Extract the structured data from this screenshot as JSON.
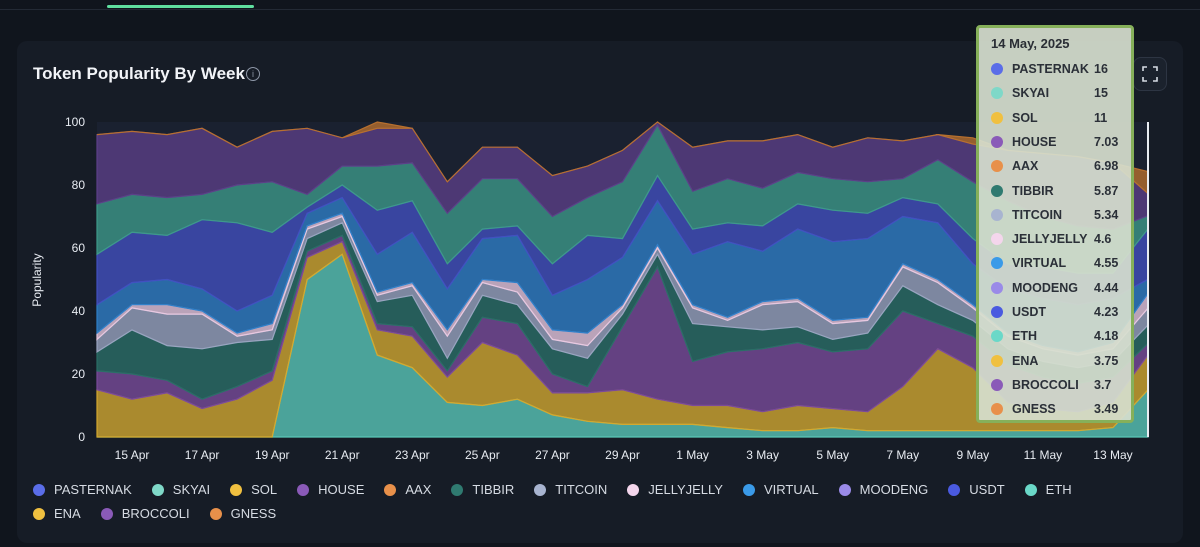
{
  "card": {
    "title": "Token Popularity By Week",
    "info_glyph": "i"
  },
  "chart_data": {
    "type": "area",
    "stacked": true,
    "title": "Token Popularity By Week",
    "ylabel": "Popularity",
    "xlabel": "",
    "ylim": [
      0,
      100
    ],
    "yticks": [
      0,
      20,
      40,
      60,
      80,
      100
    ],
    "grid": false,
    "legend_position": "bottom",
    "x": [
      "14 Apr",
      "15 Apr",
      "16 Apr",
      "17 Apr",
      "18 Apr",
      "19 Apr",
      "20 Apr",
      "21 Apr",
      "22 Apr",
      "23 Apr",
      "24 Apr",
      "25 Apr",
      "26 Apr",
      "27 Apr",
      "28 Apr",
      "29 Apr",
      "30 Apr",
      "1 May",
      "2 May",
      "3 May",
      "4 May",
      "5 May",
      "6 May",
      "7 May",
      "8 May",
      "9 May",
      "10 May",
      "11 May",
      "12 May",
      "13 May",
      "14 May"
    ],
    "xticks": [
      "15 Apr",
      "17 Apr",
      "19 Apr",
      "21 Apr",
      "23 Apr",
      "25 Apr",
      "27 Apr",
      "29 Apr",
      "1 May",
      "3 May",
      "5 May",
      "7 May",
      "9 May",
      "11 May",
      "13 May"
    ],
    "series": [
      {
        "name": "SKYAI",
        "color": "#5ac8b8",
        "values": [
          0,
          0,
          0,
          0,
          0,
          0,
          50,
          58,
          26,
          22,
          11,
          10,
          12,
          7,
          5,
          4,
          4,
          4,
          3,
          2,
          2,
          3,
          2,
          2,
          2,
          2,
          2,
          2,
          2,
          3,
          15
        ]
      },
      {
        "name": "SOL",
        "color": "#d4a82e",
        "values": [
          15,
          12,
          14,
          9,
          12,
          18,
          7,
          4,
          8,
          10,
          8,
          20,
          14,
          7,
          9,
          11,
          8,
          6,
          7,
          6,
          8,
          6,
          6,
          14,
          26,
          20,
          9,
          7,
          6,
          8,
          11
        ]
      },
      {
        "name": "BROCCOLI",
        "color": "#7a4a9a",
        "values": [
          6,
          8,
          4,
          3,
          4,
          3,
          2,
          2,
          2,
          3,
          2,
          8,
          10,
          6,
          2,
          20,
          42,
          14,
          17,
          20,
          20,
          18,
          20,
          24,
          8,
          10,
          12,
          10,
          9,
          8,
          3.7
        ]
      },
      {
        "name": "TIBBIR",
        "color": "#2a6e66",
        "values": [
          6,
          14,
          11,
          16,
          14,
          10,
          4,
          4,
          7,
          10,
          4,
          7,
          6,
          8,
          9,
          4,
          4,
          12,
          8,
          6,
          5,
          4,
          5,
          8,
          6,
          5,
          5,
          5,
          5,
          5,
          5.87
        ]
      },
      {
        "name": "TITCOIN",
        "color": "#9aa4c0",
        "values": [
          4,
          7,
          10,
          11,
          2,
          3,
          3,
          2,
          2,
          3,
          7,
          4,
          4,
          3,
          4,
          2,
          2,
          5,
          2,
          8,
          8,
          5,
          4,
          6,
          7,
          4,
          4,
          4,
          4,
          4,
          5.34
        ]
      },
      {
        "name": "JELLYJELLY",
        "color": "#e8c8e0",
        "values": [
          2,
          1,
          3,
          1,
          1,
          2,
          1,
          1,
          1,
          1,
          2,
          1,
          3,
          3,
          4,
          1,
          1,
          1,
          1,
          1,
          1,
          1,
          1,
          1,
          1,
          1,
          1,
          1,
          1,
          2,
          4.6
        ]
      },
      {
        "name": "VIRTUAL",
        "color": "#2f7fc8",
        "values": [
          9,
          7,
          8,
          7,
          7,
          9,
          4,
          5,
          12,
          16,
          13,
          13,
          15,
          11,
          17,
          15,
          14,
          16,
          24,
          16,
          22,
          25,
          25,
          15,
          18,
          13,
          14,
          15,
          15,
          14,
          4.55
        ]
      },
      {
        "name": "PASTERNAK",
        "color": "#4250c0",
        "values": [
          16,
          16,
          14,
          22,
          28,
          20,
          2,
          4,
          14,
          10,
          8,
          3,
          3,
          10,
          14,
          6,
          8,
          8,
          6,
          8,
          8,
          10,
          8,
          6,
          6,
          8,
          8,
          10,
          10,
          8,
          16
        ]
      },
      {
        "name": "ETH",
        "color": "#3e9a8a",
        "values": [
          16,
          12,
          12,
          8,
          12,
          16,
          4,
          6,
          14,
          12,
          16,
          16,
          15,
          15,
          12,
          18,
          16,
          12,
          14,
          12,
          10,
          10,
          10,
          6,
          14,
          18,
          20,
          16,
          15,
          14,
          4.18
        ]
      },
      {
        "name": "HOUSE",
        "color": "#5c3f88",
        "values": [
          22,
          20,
          20,
          21,
          12,
          16,
          21,
          9,
          12,
          11,
          10,
          10,
          10,
          13,
          10,
          10,
          10,
          14,
          12,
          15,
          12,
          10,
          14,
          12,
          8,
          12,
          16,
          20,
          22,
          21,
          7.03
        ]
      },
      {
        "name": "AAX",
        "color": "#b8702e",
        "values": [
          0,
          0,
          0,
          0,
          0,
          0,
          0,
          0,
          4,
          0,
          0,
          0,
          0,
          0,
          0,
          0,
          0,
          0,
          0,
          0,
          0,
          0,
          0,
          0,
          0,
          2,
          0,
          0,
          0,
          0,
          6.98
        ]
      }
    ],
    "tooltip": {
      "date": "14 May, 2025",
      "rows": [
        {
          "name": "PASTERNAK",
          "value": "16",
          "color": "#5a6de8"
        },
        {
          "name": "SKYAI",
          "value": "15",
          "color": "#7fd8c8"
        },
        {
          "name": "SOL",
          "value": "11",
          "color": "#f0c040"
        },
        {
          "name": "HOUSE",
          "value": "7.03",
          "color": "#8a5ab8"
        },
        {
          "name": "AAX",
          "value": "6.98",
          "color": "#e8904a"
        },
        {
          "name": "TIBBIR",
          "value": "5.87",
          "color": "#2f7a70"
        },
        {
          "name": "TITCOIN",
          "value": "5.34",
          "color": "#a8b4d0"
        },
        {
          "name": "JELLYJELLY",
          "value": "4.6",
          "color": "#f4d6ec"
        },
        {
          "name": "VIRTUAL",
          "value": "4.55",
          "color": "#3a9ae8"
        },
        {
          "name": "MOODENG",
          "value": "4.44",
          "color": "#9a8ae8"
        },
        {
          "name": "USDT",
          "value": "4.23",
          "color": "#4a5ae0"
        },
        {
          "name": "ETH",
          "value": "4.18",
          "color": "#6ad8c8"
        },
        {
          "name": "ENA",
          "value": "3.75",
          "color": "#f0c040"
        },
        {
          "name": "BROCCOLI",
          "value": "3.7",
          "color": "#8a5ab8"
        },
        {
          "name": "GNESS",
          "value": "3.49",
          "color": "#e8904a"
        }
      ]
    }
  },
  "legend": [
    {
      "name": "PASTERNAK",
      "color": "#5a6de8"
    },
    {
      "name": "SKYAI",
      "color": "#7fd8c8"
    },
    {
      "name": "SOL",
      "color": "#f0c040"
    },
    {
      "name": "HOUSE",
      "color": "#8a5ab8"
    },
    {
      "name": "AAX",
      "color": "#e8904a"
    },
    {
      "name": "TIBBIR",
      "color": "#2f7a70"
    },
    {
      "name": "TITCOIN",
      "color": "#a8b4d0"
    },
    {
      "name": "JELLYJELLY",
      "color": "#f4d6ec"
    },
    {
      "name": "VIRTUAL",
      "color": "#3a9ae8"
    },
    {
      "name": "MOODENG",
      "color": "#9a8ae8"
    },
    {
      "name": "USDT",
      "color": "#4a5ae0"
    },
    {
      "name": "ETH",
      "color": "#6ad8c8"
    },
    {
      "name": "ENA",
      "color": "#f0c040"
    },
    {
      "name": "BROCCOLI",
      "color": "#8a5ab8"
    },
    {
      "name": "GNESS",
      "color": "#e8904a"
    }
  ]
}
